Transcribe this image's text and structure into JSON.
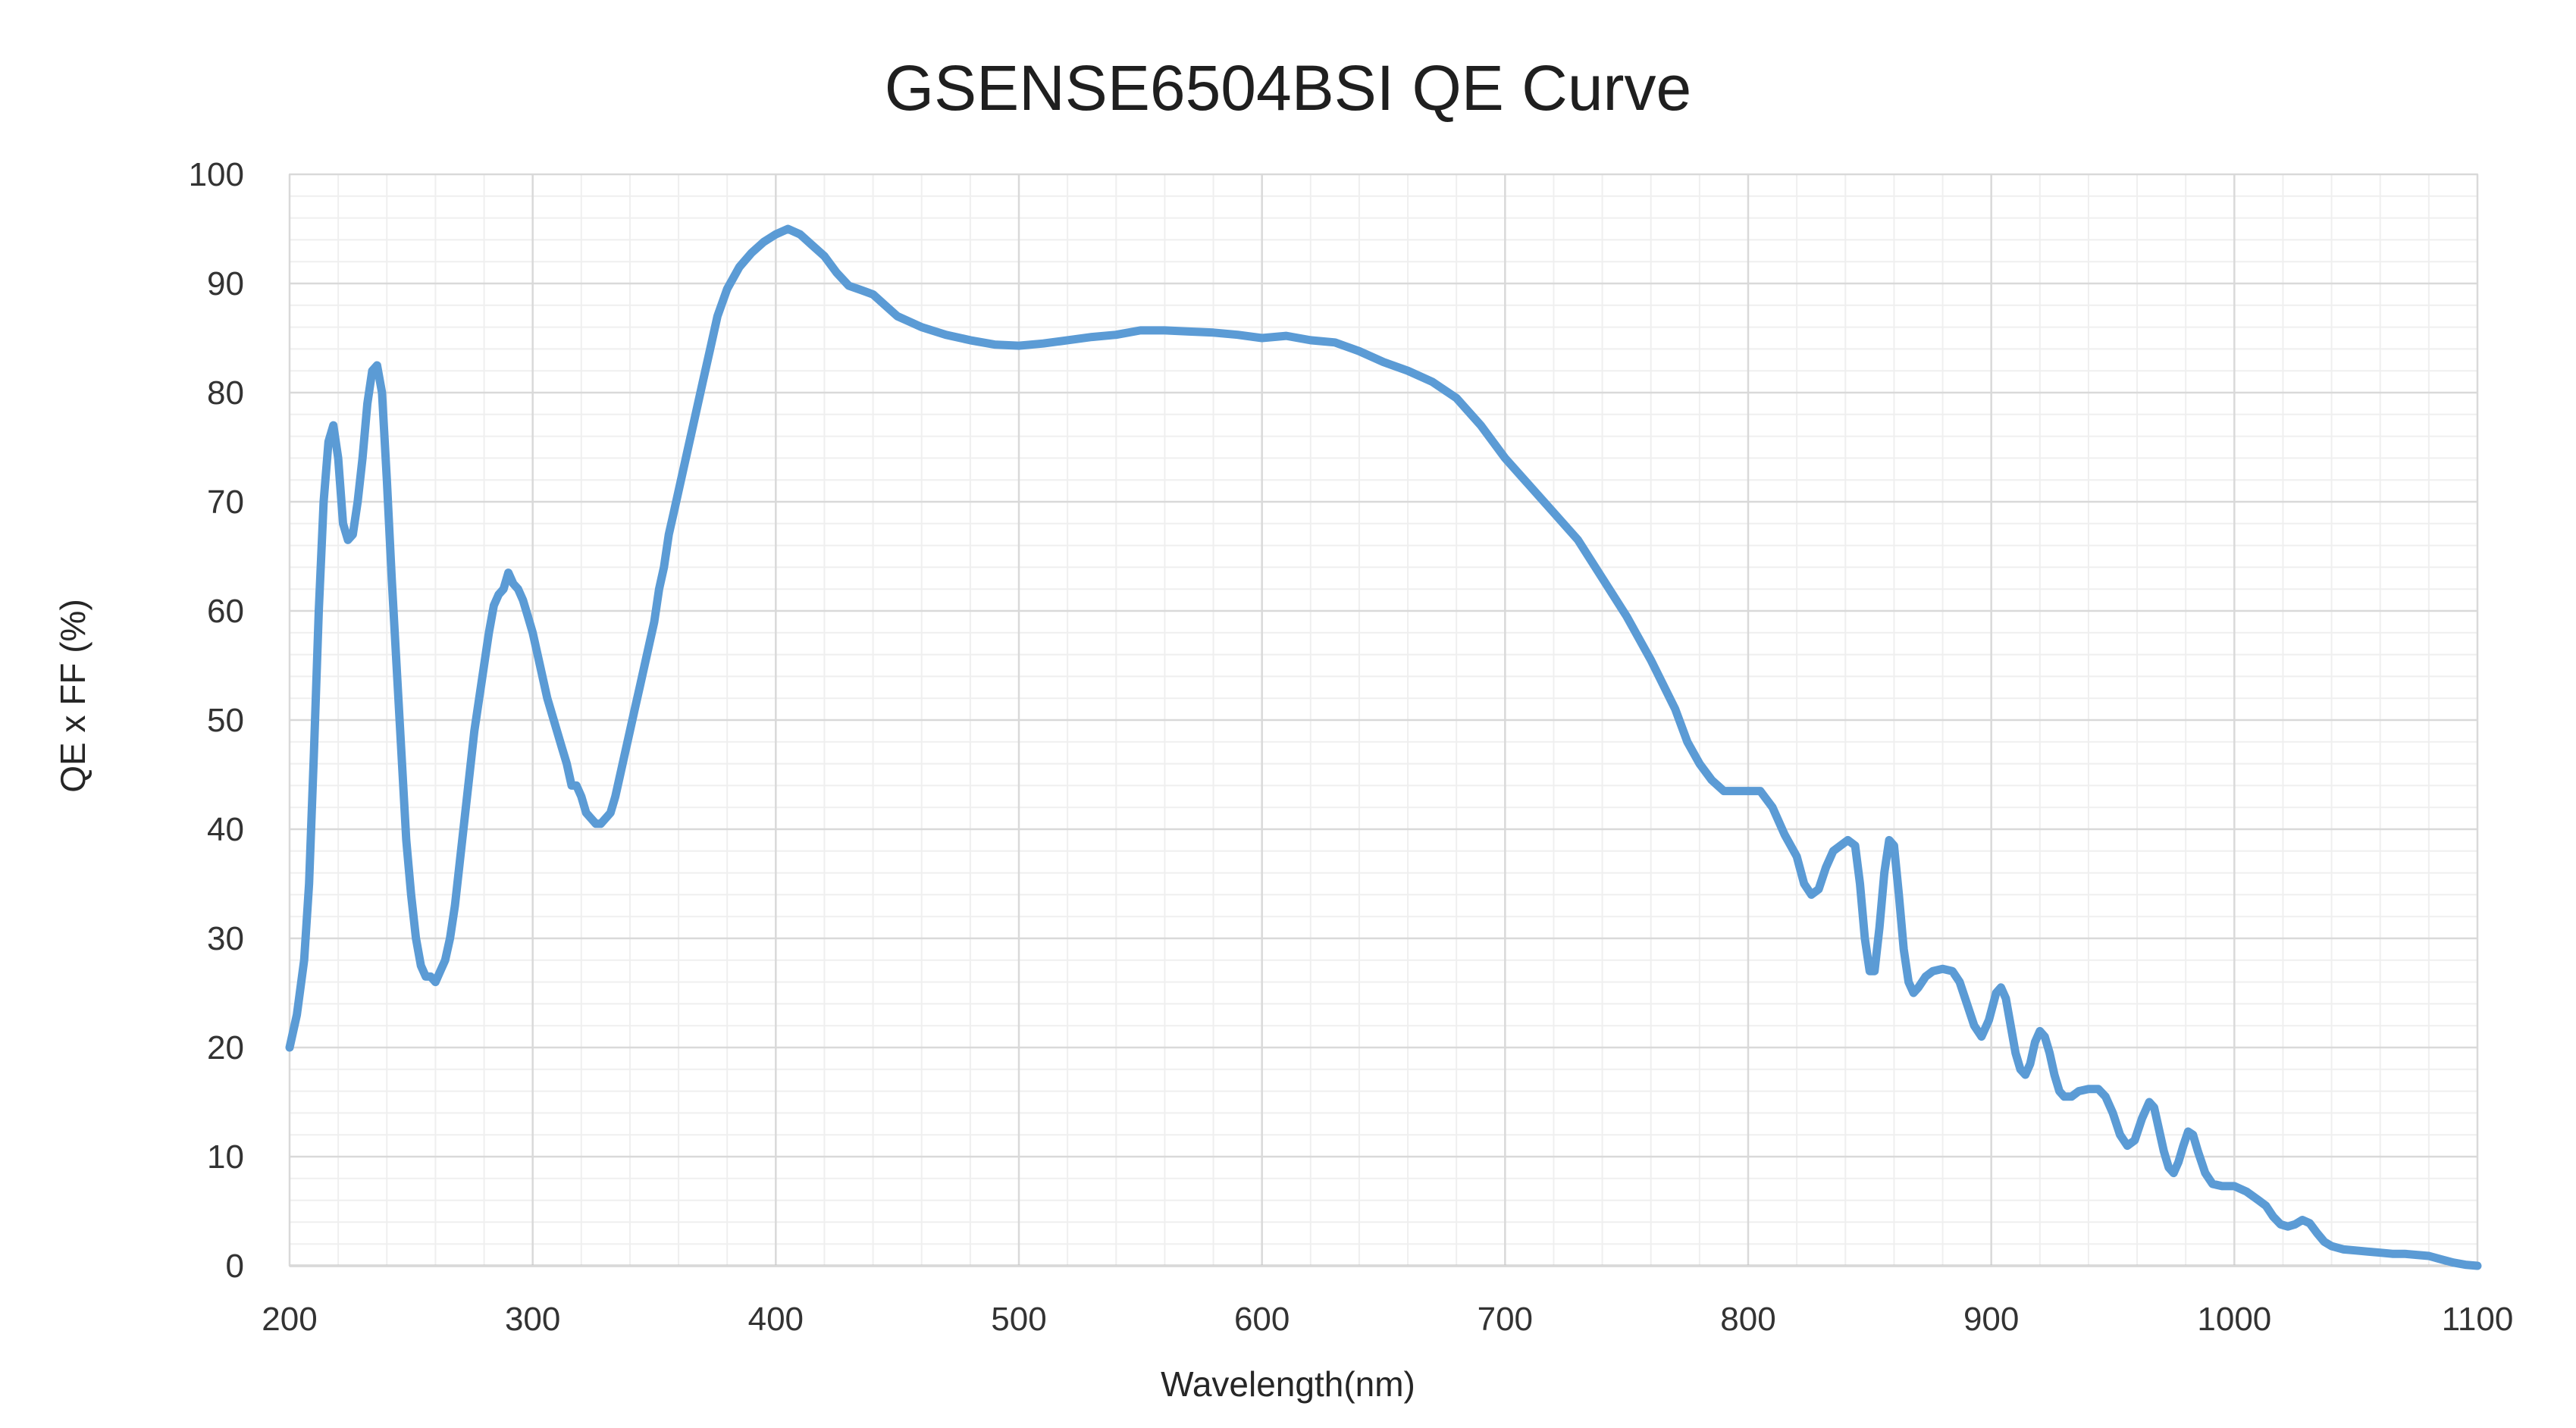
{
  "chart_data": {
    "type": "line",
    "title": "GSENSE6504BSI  QE  Curve",
    "xlabel": "Wavelength(nm)",
    "ylabel": "QE x FF (%)",
    "xlim": [
      200,
      1100
    ],
    "ylim": [
      0,
      100
    ],
    "x_ticks": [
      200,
      300,
      400,
      500,
      600,
      700,
      800,
      900,
      1000,
      1100
    ],
    "y_ticks": [
      0,
      10,
      20,
      30,
      40,
      50,
      60,
      70,
      80,
      90,
      100
    ],
    "grid": true,
    "legend": "none",
    "colors": {
      "line": "#5b9bd5",
      "major_grid": "#d9d9d9",
      "minor_grid": "#efefef",
      "axis": "#bfbfbf"
    },
    "series": [
      {
        "name": "",
        "points": [
          [
            200,
            20
          ],
          [
            203,
            23
          ],
          [
            206,
            28
          ],
          [
            208,
            35
          ],
          [
            210,
            47
          ],
          [
            212,
            60
          ],
          [
            214,
            70
          ],
          [
            216,
            75.5
          ],
          [
            218,
            77
          ],
          [
            220,
            74
          ],
          [
            222,
            68
          ],
          [
            224,
            66.5
          ],
          [
            226,
            67
          ],
          [
            228,
            70
          ],
          [
            230,
            74
          ],
          [
            232,
            79
          ],
          [
            234,
            82
          ],
          [
            236,
            82.5
          ],
          [
            238,
            80
          ],
          [
            240,
            72
          ],
          [
            242,
            63
          ],
          [
            244,
            55
          ],
          [
            246,
            47
          ],
          [
            248,
            39
          ],
          [
            250,
            34
          ],
          [
            252,
            30
          ],
          [
            254,
            27.5
          ],
          [
            256,
            26.5
          ],
          [
            258,
            26.5
          ],
          [
            260,
            26
          ],
          [
            262,
            27
          ],
          [
            264,
            28
          ],
          [
            266,
            30
          ],
          [
            268,
            33
          ],
          [
            270,
            37
          ],
          [
            272,
            41
          ],
          [
            274,
            45
          ],
          [
            276,
            49
          ],
          [
            278,
            52
          ],
          [
            280,
            55
          ],
          [
            282,
            58
          ],
          [
            284,
            60.5
          ],
          [
            286,
            61.5
          ],
          [
            288,
            62
          ],
          [
            290,
            63.5
          ],
          [
            292,
            62.5
          ],
          [
            294,
            62
          ],
          [
            296,
            61
          ],
          [
            298,
            59.5
          ],
          [
            300,
            58
          ],
          [
            302,
            56
          ],
          [
            304,
            54
          ],
          [
            306,
            52
          ],
          [
            308,
            50.5
          ],
          [
            310,
            49
          ],
          [
            312,
            47.5
          ],
          [
            314,
            46
          ],
          [
            316,
            44
          ],
          [
            318,
            44
          ],
          [
            320,
            43
          ],
          [
            322,
            41.5
          ],
          [
            324,
            41
          ],
          [
            326,
            40.5
          ],
          [
            328,
            40.5
          ],
          [
            330,
            41
          ],
          [
            332,
            41.5
          ],
          [
            334,
            43
          ],
          [
            336,
            45
          ],
          [
            338,
            47
          ],
          [
            340,
            49
          ],
          [
            342,
            51
          ],
          [
            344,
            53
          ],
          [
            346,
            55
          ],
          [
            348,
            57
          ],
          [
            350,
            59
          ],
          [
            352,
            62
          ],
          [
            354,
            64
          ],
          [
            356,
            67
          ],
          [
            358,
            69
          ],
          [
            360,
            71
          ],
          [
            362,
            73
          ],
          [
            364,
            75
          ],
          [
            367,
            78
          ],
          [
            370,
            81
          ],
          [
            373,
            84
          ],
          [
            376,
            87
          ],
          [
            380,
            89.5
          ],
          [
            385,
            91.5
          ],
          [
            390,
            92.8
          ],
          [
            395,
            93.8
          ],
          [
            400,
            94.5
          ],
          [
            405,
            95
          ],
          [
            410,
            94.5
          ],
          [
            415,
            93.5
          ],
          [
            420,
            92.5
          ],
          [
            425,
            91
          ],
          [
            430,
            89.8
          ],
          [
            435,
            89.4
          ],
          [
            440,
            89
          ],
          [
            445,
            88
          ],
          [
            450,
            87
          ],
          [
            455,
            86.5
          ],
          [
            460,
            86
          ],
          [
            470,
            85.3
          ],
          [
            480,
            84.8
          ],
          [
            490,
            84.4
          ],
          [
            500,
            84.3
          ],
          [
            510,
            84.5
          ],
          [
            520,
            84.8
          ],
          [
            530,
            85.1
          ],
          [
            540,
            85.3
          ],
          [
            550,
            85.7
          ],
          [
            560,
            85.7
          ],
          [
            570,
            85.6
          ],
          [
            580,
            85.5
          ],
          [
            590,
            85.3
          ],
          [
            600,
            85
          ],
          [
            610,
            85.2
          ],
          [
            620,
            84.8
          ],
          [
            630,
            84.6
          ],
          [
            640,
            83.8
          ],
          [
            650,
            82.8
          ],
          [
            660,
            82
          ],
          [
            670,
            81
          ],
          [
            680,
            79.5
          ],
          [
            690,
            77
          ],
          [
            700,
            74
          ],
          [
            710,
            71.5
          ],
          [
            720,
            69
          ],
          [
            730,
            66.5
          ],
          [
            740,
            63
          ],
          [
            750,
            59.5
          ],
          [
            760,
            55.5
          ],
          [
            770,
            51
          ],
          [
            775,
            48
          ],
          [
            780,
            46
          ],
          [
            785,
            44.5
          ],
          [
            790,
            43.5
          ],
          [
            795,
            43.5
          ],
          [
            800,
            43.5
          ],
          [
            805,
            43.5
          ],
          [
            810,
            42
          ],
          [
            815,
            39.5
          ],
          [
            820,
            37.5
          ],
          [
            823,
            35
          ],
          [
            826,
            34
          ],
          [
            829,
            34.5
          ],
          [
            832,
            36.5
          ],
          [
            835,
            38
          ],
          [
            838,
            38.5
          ],
          [
            841,
            39
          ],
          [
            844,
            38.5
          ],
          [
            846,
            35
          ],
          [
            848,
            30
          ],
          [
            850,
            27
          ],
          [
            852,
            27
          ],
          [
            854,
            31
          ],
          [
            856,
            36
          ],
          [
            858,
            39
          ],
          [
            860,
            38.5
          ],
          [
            862,
            34
          ],
          [
            864,
            29
          ],
          [
            866,
            26
          ],
          [
            868,
            25
          ],
          [
            870,
            25.5
          ],
          [
            873,
            26.5
          ],
          [
            876,
            27
          ],
          [
            880,
            27.2
          ],
          [
            884,
            27
          ],
          [
            887,
            26
          ],
          [
            890,
            24
          ],
          [
            893,
            22
          ],
          [
            896,
            21
          ],
          [
            899,
            22.5
          ],
          [
            902,
            25
          ],
          [
            904,
            25.5
          ],
          [
            906,
            24.5
          ],
          [
            908,
            22
          ],
          [
            910,
            19.5
          ],
          [
            912,
            18
          ],
          [
            914,
            17.5
          ],
          [
            916,
            18.5
          ],
          [
            918,
            20.5
          ],
          [
            920,
            21.5
          ],
          [
            922,
            21
          ],
          [
            924,
            19.5
          ],
          [
            926,
            17.5
          ],
          [
            928,
            16
          ],
          [
            930,
            15.5
          ],
          [
            933,
            15.5
          ],
          [
            936,
            16
          ],
          [
            940,
            16.2
          ],
          [
            944,
            16.2
          ],
          [
            947,
            15.5
          ],
          [
            950,
            14
          ],
          [
            953,
            12
          ],
          [
            956,
            11
          ],
          [
            959,
            11.5
          ],
          [
            962,
            13.5
          ],
          [
            965,
            15
          ],
          [
            967,
            14.5
          ],
          [
            969,
            12.5
          ],
          [
            971,
            10.5
          ],
          [
            973,
            9
          ],
          [
            975,
            8.5
          ],
          [
            977,
            9.5
          ],
          [
            979,
            11
          ],
          [
            981,
            12.3
          ],
          [
            983,
            12
          ],
          [
            985,
            10.5
          ],
          [
            988,
            8.5
          ],
          [
            991,
            7.5
          ],
          [
            995,
            7.3
          ],
          [
            1000,
            7.3
          ],
          [
            1005,
            6.8
          ],
          [
            1010,
            6
          ],
          [
            1013,
            5.5
          ],
          [
            1016,
            4.5
          ],
          [
            1019,
            3.8
          ],
          [
            1022,
            3.6
          ],
          [
            1025,
            3.8
          ],
          [
            1028,
            4.2
          ],
          [
            1031,
            3.9
          ],
          [
            1034,
            3
          ],
          [
            1037,
            2.2
          ],
          [
            1040,
            1.8
          ],
          [
            1045,
            1.5
          ],
          [
            1050,
            1.4
          ],
          [
            1055,
            1.3
          ],
          [
            1060,
            1.2
          ],
          [
            1065,
            1.1
          ],
          [
            1070,
            1.1
          ],
          [
            1075,
            1
          ],
          [
            1080,
            0.9
          ],
          [
            1085,
            0.6
          ],
          [
            1090,
            0.3
          ],
          [
            1095,
            0.1
          ],
          [
            1100,
            0
          ]
        ]
      }
    ]
  }
}
